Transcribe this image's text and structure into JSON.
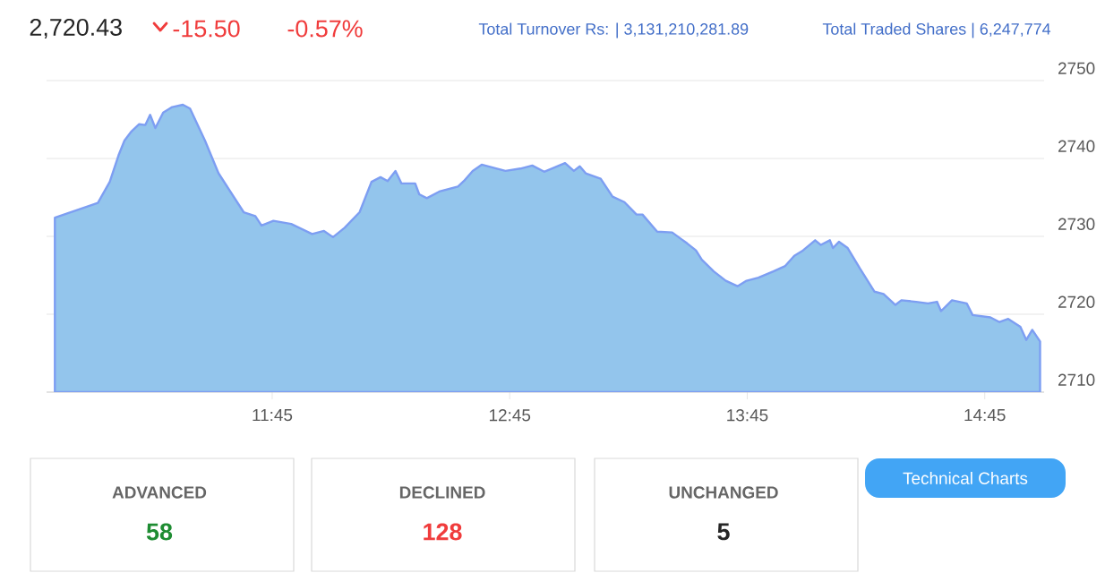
{
  "chart_data": {
    "type": "area",
    "title": "2,720.43",
    "annotations": [
      "-15.50",
      "-0.57%",
      "Total Turnover Rs: | 3,131,210,281.89",
      "Total Traded Shares | 6,247,774",
      "ADVANCED",
      "58",
      "DECLINED",
      "128",
      "UNCHANGED",
      "5",
      "Technical Charts"
    ],
    "x": [
      10.835,
      11.016,
      11.066,
      11.103,
      11.128,
      11.158,
      11.19,
      11.216,
      11.236,
      11.258,
      11.291,
      11.329,
      11.374,
      11.404,
      11.467,
      11.524,
      11.63,
      11.679,
      11.705,
      11.755,
      11.83,
      11.918,
      11.968,
      12.006,
      12.055,
      12.118,
      12.168,
      12.206,
      12.236,
      12.269,
      12.294,
      12.352,
      12.369,
      12.401,
      12.457,
      12.532,
      12.557,
      12.594,
      12.632,
      12.732,
      12.795,
      12.845,
      12.895,
      12.983,
      13.02,
      13.045,
      13.07,
      13.133,
      13.183,
      13.233,
      13.284,
      13.309,
      13.371,
      13.434,
      13.497,
      13.534,
      13.559,
      13.609,
      13.66,
      13.709,
      13.747,
      13.797,
      13.86,
      13.91,
      13.948,
      13.985,
      14.036,
      14.06,
      14.098,
      14.111,
      14.136,
      14.173,
      14.224,
      14.286,
      14.324,
      14.374,
      14.399,
      14.461,
      14.511,
      14.549,
      14.566,
      14.612,
      14.674,
      14.699,
      14.774,
      14.812,
      14.849,
      14.9,
      14.925,
      14.95,
      14.983
    ],
    "series": [
      {
        "color": "#93c5ec",
        "values": [
          2732.4,
          2734.3,
          2737.0,
          2740.4,
          2742.3,
          2743.5,
          2744.4,
          2744.3,
          2745.6,
          2743.9,
          2745.9,
          2746.6,
          2746.9,
          2746.4,
          2742.3,
          2738.1,
          2733.1,
          2732.6,
          2731.4,
          2732.0,
          2731.6,
          2730.3,
          2730.7,
          2729.9,
          2731.1,
          2733.1,
          2737.0,
          2737.6,
          2737.1,
          2738.4,
          2736.8,
          2736.8,
          2735.4,
          2734.9,
          2735.8,
          2736.4,
          2737.1,
          2738.4,
          2739.2,
          2738.4,
          2738.7,
          2739.1,
          2738.3,
          2739.4,
          2738.4,
          2739.0,
          2738.1,
          2737.4,
          2735.1,
          2734.4,
          2732.8,
          2732.8,
          2730.6,
          2730.5,
          2729.1,
          2728.2,
          2727.0,
          2725.5,
          2724.3,
          2723.6,
          2724.3,
          2724.7,
          2725.5,
          2726.2,
          2727.5,
          2728.2,
          2729.5,
          2728.9,
          2729.5,
          2728.5,
          2729.3,
          2728.5,
          2725.9,
          2722.9,
          2722.6,
          2721.2,
          2721.8,
          2721.6,
          2721.4,
          2721.6,
          2720.4,
          2721.8,
          2721.4,
          2719.9,
          2719.6,
          2719.0,
          2719.4,
          2718.4,
          2716.7,
          2718.0,
          2716.5
        ]
      }
    ],
    "xlim": [
      10.8,
      15.0
    ],
    "ylim": [
      2710,
      2750
    ],
    "xticks": [
      {
        "value": 11.75,
        "label": "11:45"
      },
      {
        "value": 12.75,
        "label": "12:45"
      },
      {
        "value": 13.75,
        "label": "13:45"
      },
      {
        "value": 14.75,
        "label": "14:45"
      }
    ],
    "yticks": [
      2710,
      2720,
      2730,
      2740,
      2750
    ],
    "grid": "y",
    "marker": "none",
    "line_style": "solid"
  }
}
